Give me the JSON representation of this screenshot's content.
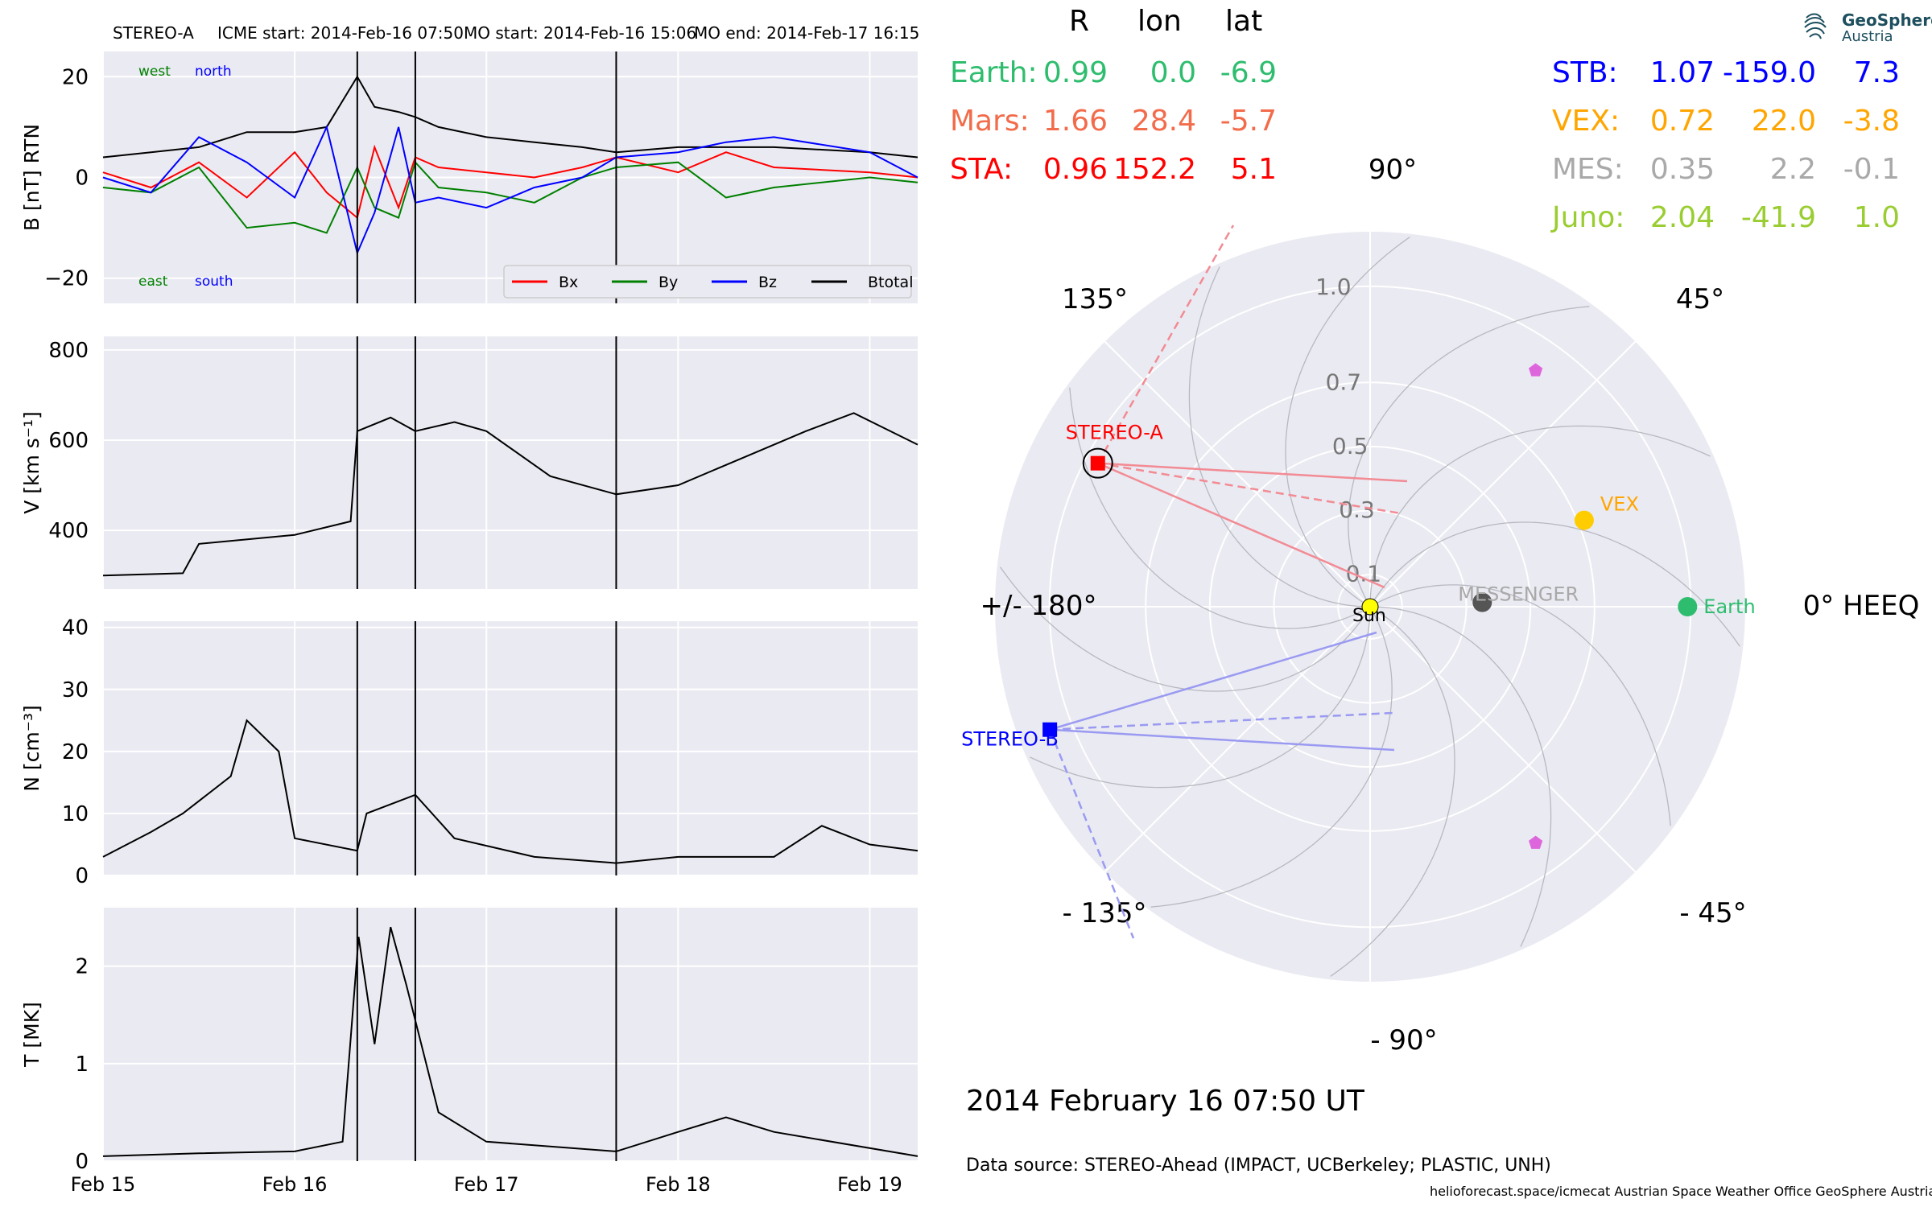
{
  "header": {
    "mission": "STEREO-A",
    "icme_start": "ICME start: 2014-Feb-16 07:50",
    "mo_start": "MO start: 2014-Feb-16 15:06",
    "mo_end": "MO end: 2014-Feb-17 16:15"
  },
  "logo": {
    "line1": "GeoSphere",
    "line2": "Austria"
  },
  "table": {
    "headers": [
      "R",
      "lon",
      "lat"
    ],
    "left_rows": [
      {
        "name": "Earth:",
        "R": "0.99",
        "lon": "0.0",
        "lat": "-6.9",
        "color": "#2ebd6e"
      },
      {
        "name": "Mars:",
        "R": "1.66",
        "lon": "28.4",
        "lat": "-5.7",
        "color": "#f26b4a"
      },
      {
        "name": "STA:",
        "R": "0.96",
        "lon": "152.2",
        "lat": "5.1",
        "color": "#ff0000"
      }
    ],
    "right_rows": [
      {
        "name": "STB:",
        "R": "1.07",
        "lon": "-159.0",
        "lat": "7.3",
        "color": "#0000ff"
      },
      {
        "name": "VEX:",
        "R": "0.72",
        "lon": "22.0",
        "lat": "-3.8",
        "color": "#ffa500"
      },
      {
        "name": "MES:",
        "R": "0.35",
        "lon": "2.2",
        "lat": "-0.1",
        "color": "#a9a9a9"
      },
      {
        "name": "Juno:",
        "R": "2.04",
        "lon": "-41.9",
        "lat": "1.0",
        "color": "#9acd32"
      }
    ]
  },
  "timestamp": "2014 February 16  07:50 UT",
  "data_source": "Data source: STEREO-Ahead (IMPACT, UCBerkeley; PLASTIC, UNH)",
  "credits": "helioforecast.space/icmecat   Austrian Space Weather Office   GeoSphere Austria",
  "chart_data": [
    {
      "type": "line",
      "panel": "magnetic field",
      "ylabel": "B [nT] RTN",
      "ylim": [
        -25,
        25
      ],
      "yticks": [
        -20,
        0,
        20
      ],
      "ytick_labels": [
        "−20",
        "0",
        "20"
      ],
      "corner_labels": {
        "west": "west",
        "north": "north",
        "east": "east",
        "south": "south"
      },
      "legend": [
        "Bx",
        "By",
        "Bz",
        "Btotal"
      ],
      "legend_placement": "lower-right",
      "x": [
        "2014-02-15 00:00",
        "2014-02-15 06:00",
        "2014-02-15 12:00",
        "2014-02-15 18:00",
        "2014-02-16 00:00",
        "2014-02-16 04:00",
        "2014-02-16 07:50",
        "2014-02-16 10:00",
        "2014-02-16 13:00",
        "2014-02-16 15:06",
        "2014-02-16 18:00",
        "2014-02-17 00:00",
        "2014-02-17 06:00",
        "2014-02-17 12:00",
        "2014-02-17 16:15",
        "2014-02-18 00:00",
        "2014-02-18 06:00",
        "2014-02-18 12:00",
        "2014-02-19 00:00",
        "2014-02-19 06:00"
      ],
      "series": [
        {
          "name": "Btotal",
          "color": "#000000",
          "values": [
            4,
            5,
            6,
            9,
            9,
            10,
            20,
            14,
            13,
            12,
            10,
            8,
            7,
            6,
            5,
            6,
            6,
            6,
            5,
            4
          ]
        },
        {
          "name": "Bx",
          "color": "#ff0000",
          "values": [
            1,
            -2,
            3,
            -4,
            5,
            -3,
            -8,
            6,
            -6,
            4,
            2,
            1,
            0,
            2,
            4,
            1,
            5,
            2,
            1,
            0
          ]
        },
        {
          "name": "By",
          "color": "#008000",
          "values": [
            -2,
            -3,
            2,
            -10,
            -9,
            -11,
            2,
            -6,
            -8,
            3,
            -2,
            -3,
            -5,
            0,
            2,
            3,
            -4,
            -2,
            0,
            -1
          ]
        },
        {
          "name": "Bz",
          "color": "#0000ff",
          "values": [
            0,
            -3,
            8,
            3,
            -4,
            10,
            -15,
            -7,
            10,
            -5,
            -4,
            -6,
            -2,
            0,
            4,
            5,
            7,
            8,
            5,
            0
          ]
        }
      ]
    },
    {
      "type": "line",
      "panel": "speed",
      "ylabel": "V [km s⁻¹]",
      "ylim": [
        270,
        830
      ],
      "yticks": [
        400,
        600,
        800
      ],
      "x": [
        "2014-02-15 00:00",
        "2014-02-15 10:00",
        "2014-02-15 12:00",
        "2014-02-16 00:00",
        "2014-02-16 07:00",
        "2014-02-16 07:50",
        "2014-02-16 12:00",
        "2014-02-16 15:06",
        "2014-02-16 20:00",
        "2014-02-17 00:00",
        "2014-02-17 08:00",
        "2014-02-17 16:15",
        "2014-02-18 00:00",
        "2014-02-18 08:00",
        "2014-02-18 16:00",
        "2014-02-18 22:00",
        "2014-02-19 06:00"
      ],
      "series": [
        {
          "name": "V",
          "color": "#000000",
          "values": [
            300,
            305,
            370,
            390,
            420,
            620,
            650,
            620,
            640,
            620,
            520,
            480,
            500,
            560,
            620,
            660,
            590
          ]
        }
      ]
    },
    {
      "type": "line",
      "panel": "density",
      "ylabel": "N [cm⁻³]",
      "ylim": [
        0,
        41
      ],
      "yticks": [
        0,
        10,
        20,
        30,
        40
      ],
      "x": [
        "2014-02-15 00:00",
        "2014-02-15 06:00",
        "2014-02-15 10:00",
        "2014-02-15 16:00",
        "2014-02-15 18:00",
        "2014-02-15 22:00",
        "2014-02-16 00:00",
        "2014-02-16 07:50",
        "2014-02-16 09:00",
        "2014-02-16 15:06",
        "2014-02-16 20:00",
        "2014-02-17 06:00",
        "2014-02-17 16:15",
        "2014-02-18 00:00",
        "2014-02-18 12:00",
        "2014-02-18 18:00",
        "2014-02-19 00:00",
        "2014-02-19 06:00"
      ],
      "series": [
        {
          "name": "N",
          "color": "#000000",
          "values": [
            3,
            7,
            10,
            16,
            25,
            20,
            6,
            4,
            10,
            13,
            6,
            3,
            2,
            3,
            3,
            8,
            5,
            4
          ]
        }
      ]
    },
    {
      "type": "line",
      "panel": "temperature",
      "ylabel": "T [MK]",
      "ylim": [
        0,
        2.6
      ],
      "yticks": [
        0,
        1,
        2
      ],
      "x": [
        "2014-02-15 00:00",
        "2014-02-15 12:00",
        "2014-02-16 00:00",
        "2014-02-16 06:00",
        "2014-02-16 08:00",
        "2014-02-16 10:00",
        "2014-02-16 12:00",
        "2014-02-16 14:00",
        "2014-02-16 18:00",
        "2014-02-17 00:00",
        "2014-02-17 16:15",
        "2014-02-18 00:00",
        "2014-02-18 06:00",
        "2014-02-18 12:00",
        "2014-02-19 06:00"
      ],
      "series": [
        {
          "name": "T",
          "color": "#000000",
          "values": [
            0.05,
            0.08,
            0.1,
            0.2,
            2.3,
            1.2,
            2.4,
            1.8,
            0.5,
            0.2,
            0.1,
            0.3,
            0.45,
            0.3,
            0.05
          ]
        }
      ]
    },
    {
      "type": "polar",
      "panel": "spacecraft positions",
      "angle_labels": [
        "90°",
        "135°",
        "45°",
        "+/- 180°",
        "0° HEEQ",
        "- 135°",
        "- 45°",
        "- 90°"
      ],
      "radial_ticks": [
        0.1,
        0.3,
        0.5,
        0.7,
        1.0
      ],
      "radial_tick_labels": [
        "0.1",
        "0.3",
        "0.5",
        "0.7",
        "1.0"
      ],
      "rmax": 1.17,
      "objects": [
        {
          "name": "Sun",
          "r": 0.0,
          "lon": 0.0,
          "color": "#ffff00"
        },
        {
          "name": "Earth",
          "r": 0.99,
          "lon": 0.0,
          "color": "#2ebd6e"
        },
        {
          "name": "VEX",
          "r": 0.72,
          "lon": 22.0,
          "color": "#ffcc00"
        },
        {
          "name": "MESSENGER",
          "r": 0.35,
          "lon": 2.2,
          "color": "#555555"
        },
        {
          "name": "STEREO-A",
          "r": 0.96,
          "lon": 152.2,
          "color": "#ff0000"
        },
        {
          "name": "STEREO-B",
          "r": 1.07,
          "lon": -159.0,
          "color": "#0000ff"
        }
      ],
      "markers": [
        {
          "r": 0.9,
          "lon": 55.0,
          "color": "#dd66dd"
        },
        {
          "r": 0.9,
          "lon": -55.0,
          "color": "#dd66dd"
        }
      ]
    }
  ],
  "time_axis": {
    "labels": [
      "Feb 15",
      "Feb 16",
      "Feb 17",
      "Feb 18",
      "Feb 19"
    ],
    "start": "2014-02-15 00:00",
    "end": "2014-02-19 06:00",
    "event_lines": [
      "2014-02-16 07:50",
      "2014-02-16 15:06",
      "2014-02-17 16:15"
    ]
  }
}
